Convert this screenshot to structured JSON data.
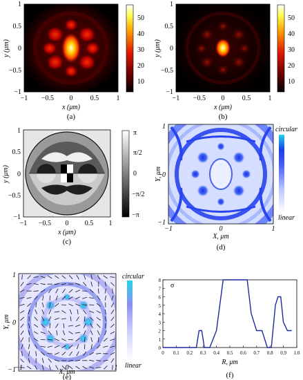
{
  "panels": {
    "a": {
      "caption": "(a)",
      "xlabel": "x (μm)",
      "ylabel": "y (μm)",
      "xticks": [
        "−1",
        "−0.5",
        "0",
        "0.5",
        "1"
      ],
      "yticks": [
        "1",
        "0.5",
        "0",
        "−0.5",
        "−1"
      ],
      "colorbar_ticks": [
        "50",
        "40",
        "30",
        "20",
        "10"
      ],
      "colormap": [
        "#000000",
        "#3a0000",
        "#8a0000",
        "#d01000",
        "#ff5a00",
        "#ffb400",
        "#ffff60",
        "#ffffff"
      ]
    },
    "b": {
      "caption": "(b)",
      "xlabel": "x (μm)",
      "ylabel": "y (μm)",
      "xticks": [
        "−1",
        "−0.5",
        "0",
        "0.5",
        "1"
      ],
      "yticks": [
        "1",
        "0.5",
        "0",
        "−0.5",
        "−1"
      ],
      "colorbar_ticks": [
        "50",
        "40",
        "30",
        "20",
        "10"
      ]
    },
    "c": {
      "caption": "(c)",
      "xlabel": "x (μm)",
      "ylabel": "y (μm)",
      "xticks": [
        "−1",
        "−0.5",
        "0",
        "0.5",
        "1"
      ],
      "yticks": [
        "1",
        "0.5",
        "0",
        "−0.5",
        "−1"
      ],
      "colorbar_ticks": [
        "π",
        "π/2",
        "0",
        "−π/2",
        "−π"
      ]
    },
    "d": {
      "caption": "(d)",
      "xlabel": "X, μm",
      "ylabel": "Y, μm",
      "xticks": [
        "−1",
        "0",
        "1"
      ],
      "yticks": [
        "1",
        "0",
        "−1"
      ],
      "colorbar_top": "circular",
      "colorbar_bottom": "linear",
      "colormap": [
        "#ffffff",
        "#c8d4ff",
        "#6f86ff",
        "#2a3cf0",
        "#1a60f0",
        "#20c8e6"
      ]
    },
    "e": {
      "caption": "(e)",
      "xlabel": "X, μm",
      "ylabel": "Y, μm",
      "xticks": [
        "−1",
        "0",
        "1"
      ],
      "yticks": [
        "1",
        "0",
        "−1"
      ],
      "colorbar_top": "circular",
      "colorbar_bottom": "linear",
      "colormap": [
        "#ffffff",
        "#d9dcff",
        "#8f8cf0",
        "#5aa0f0",
        "#2ad0e0"
      ]
    },
    "f": {
      "caption": "(f)",
      "xlabel": "R, μm",
      "ylabel": "σ",
      "xticks": [
        "0",
        "0.1",
        "0.2",
        "0.3",
        "0.4",
        "0.5",
        "0.6",
        "0.7",
        "0.8",
        "0.9",
        "1.0"
      ],
      "yticks": [
        "8",
        "7",
        "6",
        "5",
        "4",
        "3",
        "2",
        "1",
        "0"
      ]
    }
  },
  "chart_data": {
    "type": "line",
    "xlabel": "R, μm",
    "ylabel": "σ",
    "xlim": [
      0,
      1.0
    ],
    "ylim": [
      0,
      8
    ],
    "x": [
      0.0,
      0.05,
      0.1,
      0.15,
      0.2,
      0.25,
      0.27,
      0.29,
      0.31,
      0.35,
      0.4,
      0.45,
      0.5,
      0.55,
      0.6,
      0.63,
      0.66,
      0.7,
      0.74,
      0.78,
      0.81,
      0.84,
      0.86,
      0.88,
      0.9,
      0.93,
      0.96
    ],
    "series": [
      {
        "values": [
          0,
          0,
          0,
          0,
          0,
          0,
          2,
          2,
          0,
          0,
          2,
          8,
          8,
          8,
          8,
          8,
          4,
          2,
          2,
          0,
          0,
          5,
          6,
          6,
          3,
          2,
          2
        ]
      }
    ]
  }
}
